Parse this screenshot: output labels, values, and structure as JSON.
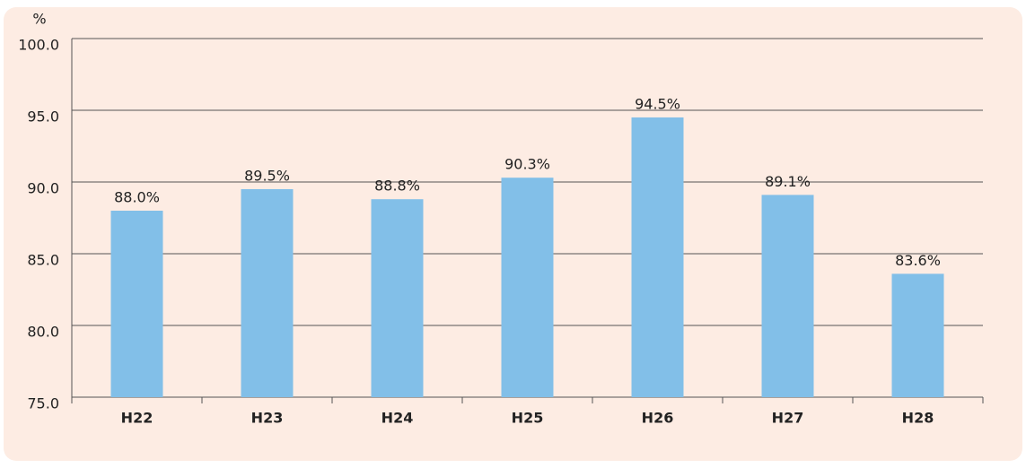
{
  "chart_data": {
    "type": "bar",
    "y_unit_label": "%",
    "categories": [
      "H22",
      "H23",
      "H24",
      "H25",
      "H26",
      "H27",
      "H28"
    ],
    "values": [
      88.0,
      89.5,
      88.8,
      90.3,
      94.5,
      89.1,
      83.6
    ],
    "value_labels": [
      "88.0%",
      "89.5%",
      "88.8%",
      "90.3%",
      "94.5%",
      "89.1%",
      "83.6%"
    ],
    "color": "#82bfe8",
    "ylim": [
      75,
      100
    ],
    "yticks": [
      {
        "value": 75,
        "label": "75.0"
      },
      {
        "value": 80,
        "label": "80.0"
      },
      {
        "value": 85,
        "label": "85.0"
      },
      {
        "value": 90,
        "label": "90.0"
      },
      {
        "value": 95,
        "label": "95.0"
      },
      {
        "value": 100,
        "label": "100.0"
      }
    ],
    "grid": true
  }
}
